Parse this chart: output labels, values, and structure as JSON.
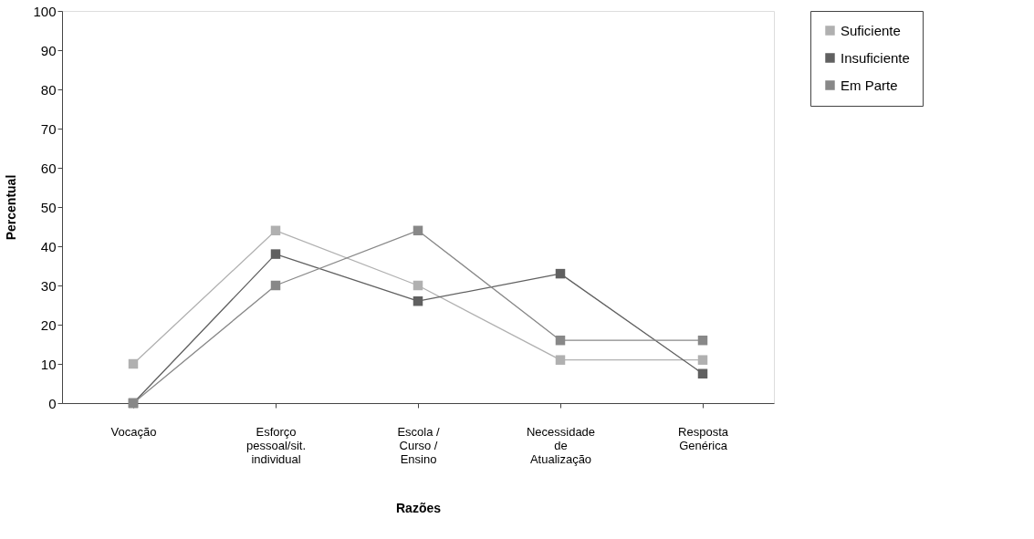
{
  "chart_data": {
    "type": "line",
    "xlabel": "Razões",
    "ylabel": "Percentual",
    "categories": [
      "Vocação",
      "Esforço\npessoal/sit.\nindividual",
      "Escola /\nCurso /\nEnsino",
      "Necessidade\nde\nAtualização",
      "Resposta\nGenérica"
    ],
    "series": [
      {
        "name": "Suficiente",
        "color": "#b0b0b0",
        "values": [
          10,
          44,
          30,
          11,
          11
        ]
      },
      {
        "name": "Insuficiente",
        "color": "#606060",
        "values": [
          0,
          38,
          26,
          33,
          7.5
        ]
      },
      {
        "name": "Em Parte",
        "color": "#888888",
        "values": [
          0,
          30,
          44,
          16,
          16
        ]
      }
    ],
    "ylim": [
      0,
      100
    ],
    "yticks": [
      0,
      10,
      20,
      30,
      40,
      50,
      60,
      70,
      80,
      90,
      100
    ],
    "grid": false,
    "legend": "right",
    "marker": "square",
    "line_style": "solid"
  }
}
